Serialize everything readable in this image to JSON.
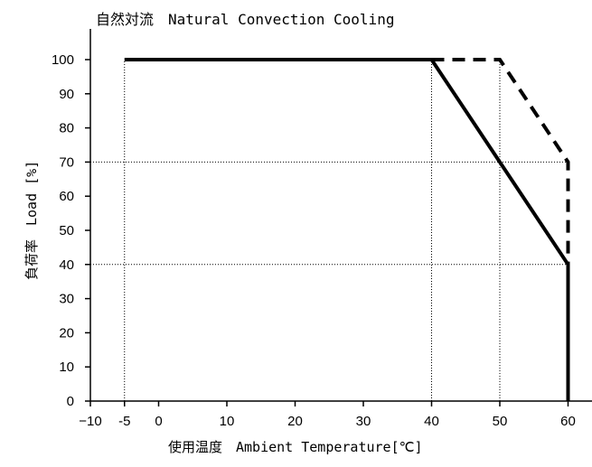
{
  "chart_data": {
    "type": "line",
    "title": "自然対流　Natural Convection Cooling",
    "xlabel": "使用温度　Ambient Temperature[℃]",
    "ylabel": "負荷率　Load [%]",
    "xlim": [
      -10,
      65
    ],
    "ylim": [
      0,
      105
    ],
    "x_ticks": [
      -10,
      -5,
      0,
      10,
      20,
      30,
      40,
      50,
      60
    ],
    "x_tick_labels": [
      "−10",
      "-5",
      "0",
      "10",
      "20",
      "30",
      "40",
      "50",
      "60"
    ],
    "y_ticks": [
      0,
      10,
      20,
      30,
      40,
      50,
      60,
      70,
      80,
      90,
      100
    ],
    "y_tick_labels": [
      "0",
      "10",
      "20",
      "30",
      "40",
      "50",
      "60",
      "70",
      "80",
      "90",
      "100"
    ],
    "grid": "dotted reference lines",
    "legend": "none",
    "series": [
      {
        "style": "solid",
        "x": [
          -5,
          40,
          60,
          60
        ],
        "y": [
          100,
          100,
          40,
          0
        ]
      },
      {
        "style": "dashed",
        "x": [
          40,
          50,
          60,
          60
        ],
        "y": [
          100,
          100,
          70,
          0
        ]
      }
    ],
    "reference_lines": [
      {
        "orient": "v",
        "x": -5,
        "y": [
          0,
          100
        ]
      },
      {
        "orient": "v",
        "x": 40,
        "y": [
          0,
          100
        ]
      },
      {
        "orient": "v",
        "x": 50,
        "y": [
          0,
          100
        ]
      },
      {
        "orient": "h",
        "y": 70,
        "x": [
          -10,
          60
        ]
      },
      {
        "orient": "h",
        "y": 40,
        "x": [
          -10,
          60
        ]
      }
    ]
  }
}
